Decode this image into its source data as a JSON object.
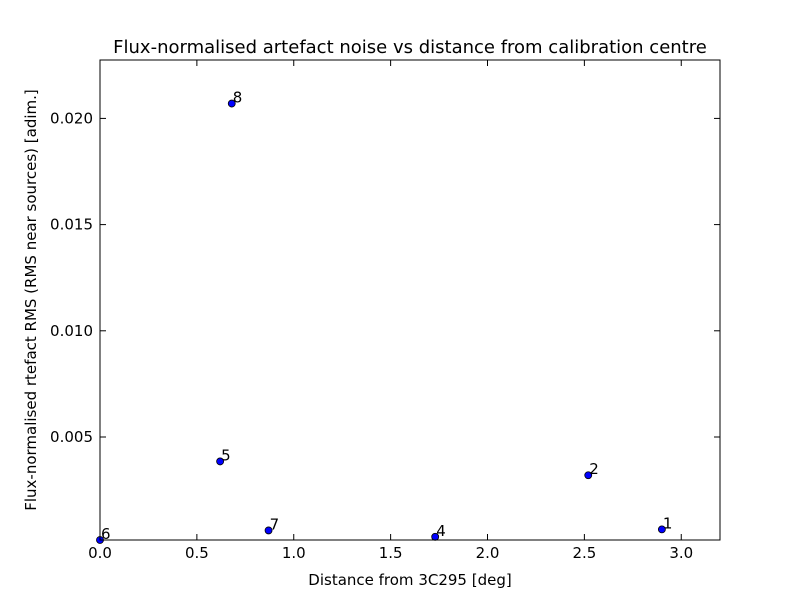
{
  "chart_data": {
    "type": "scatter",
    "title": "Flux-normalised artefact noise vs distance from calibration centre",
    "xlabel": "Distance from 3C295 [deg]",
    "ylabel": "Flux-normalised rtefact RMS (RMS near sources) [adim.]",
    "xlim": [
      0.0,
      3.2
    ],
    "ylim": [
      0.00015,
      0.02275
    ],
    "xticks": [
      0.0,
      0.5,
      1.0,
      1.5,
      2.0,
      2.5,
      3.0
    ],
    "xtick_labels": [
      "0.0",
      "0.5",
      "1.0",
      "1.5",
      "2.0",
      "2.5",
      "3.0"
    ],
    "yticks": [
      0.005,
      0.01,
      0.015,
      0.02
    ],
    "ytick_labels": [
      "0.005",
      "0.010",
      "0.015",
      "0.020"
    ],
    "grid": false,
    "marker_color": "#0000ff",
    "points": [
      {
        "label": "1",
        "x": 2.9,
        "y": 0.00065
      },
      {
        "label": "2",
        "x": 2.52,
        "y": 0.0032
      },
      {
        "label": "4",
        "x": 1.73,
        "y": 0.0003
      },
      {
        "label": "5",
        "x": 0.62,
        "y": 0.00385
      },
      {
        "label": "6",
        "x": 0.0,
        "y": 0.0001
      },
      {
        "label": "7",
        "x": 0.87,
        "y": 0.0006
      },
      {
        "label": "8",
        "x": 0.68,
        "y": 0.0207
      }
    ]
  }
}
